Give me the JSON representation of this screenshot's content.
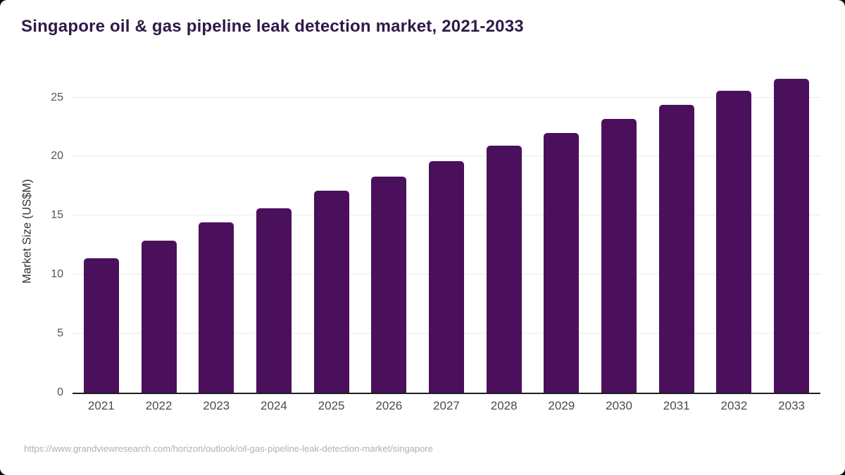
{
  "title": "Singapore oil & gas pipeline leak detection market, 2021-2033",
  "footer": {
    "source_url": "https://www.grandviewresearch.com/horizon/outlook/oil-gas-pipeline-leak-detection-market/singapore"
  },
  "colors": {
    "bar": "#4a105c",
    "title_text": "#2e1a47",
    "axis_text": "#555555",
    "y_title_text": "#333333",
    "gridline": "#e9e9e9",
    "baseline": "#1f1f1f",
    "footer_text": "#b1b1b1",
    "background": "#ffffff"
  },
  "chart_data": {
    "type": "bar",
    "title": "Singapore oil & gas pipeline leak detection market, 2021-2033",
    "categories": [
      "2021",
      "2022",
      "2023",
      "2024",
      "2025",
      "2026",
      "2027",
      "2028",
      "2029",
      "2030",
      "2031",
      "2032",
      "2033"
    ],
    "values": [
      11.4,
      12.9,
      14.4,
      15.6,
      17.1,
      18.3,
      19.6,
      20.9,
      22.0,
      23.2,
      24.4,
      25.6,
      26.6
    ],
    "xlabel": "",
    "ylabel": "Market Size (US$M)",
    "ylim": [
      0,
      27.3
    ],
    "yticks": [
      0,
      5,
      10,
      15,
      20,
      25
    ],
    "grid": true,
    "legend": false
  }
}
